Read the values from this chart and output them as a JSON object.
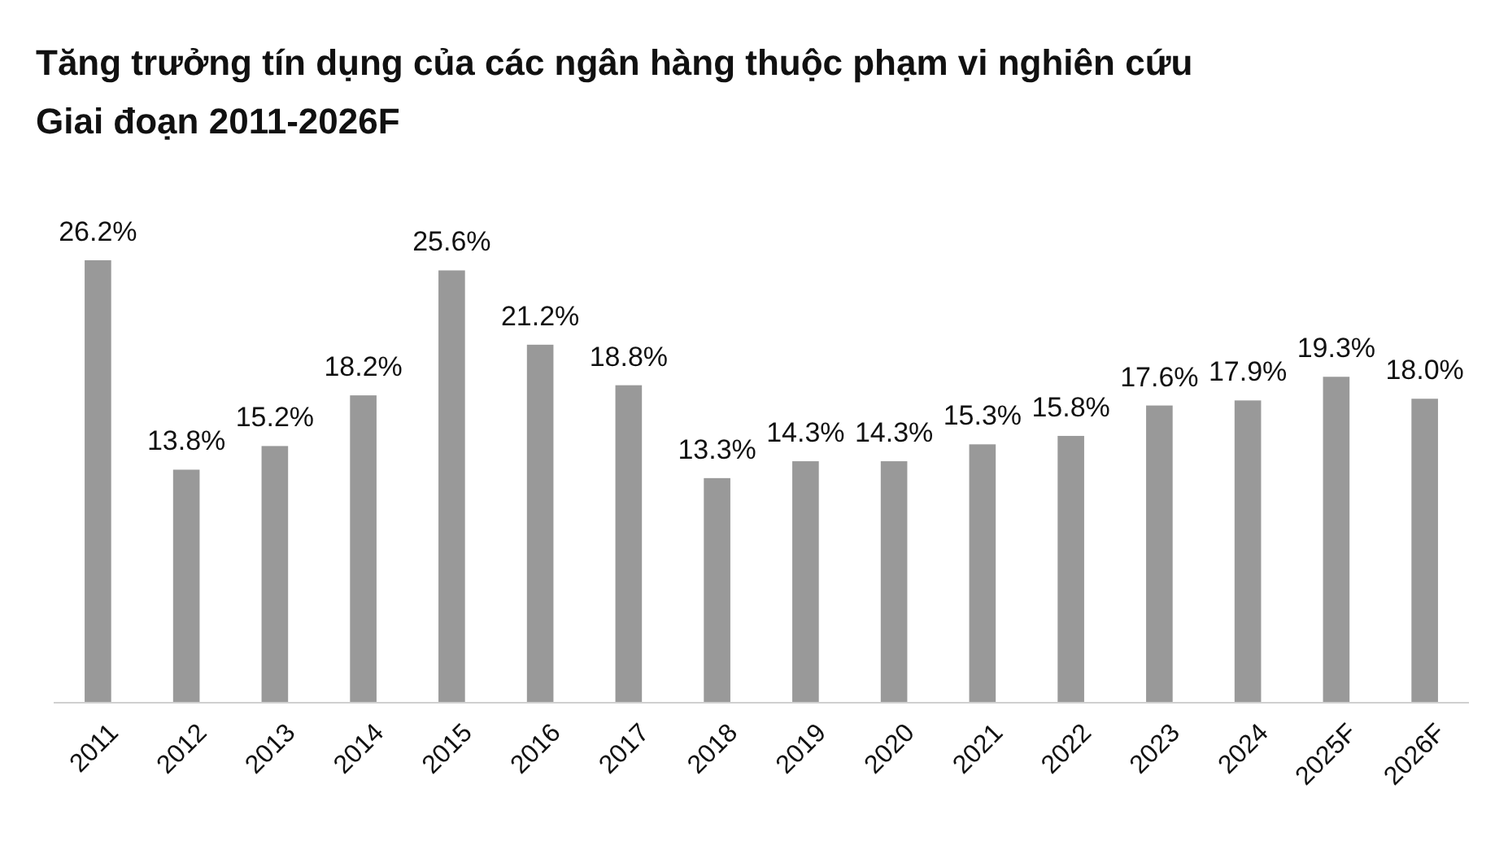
{
  "chart_data": {
    "type": "bar",
    "title": "Tăng trưởng tín dụng của các ngân hàng thuộc phạm vi nghiên cứu",
    "subtitle": "Giai đoạn 2011-2026F",
    "categories": [
      "2011",
      "2012",
      "2013",
      "2014",
      "2015",
      "2016",
      "2017",
      "2018",
      "2019",
      "2020",
      "2021",
      "2022",
      "2023",
      "2024",
      "2025F",
      "2026F"
    ],
    "values": [
      26.2,
      13.8,
      15.2,
      18.2,
      25.6,
      21.2,
      18.8,
      13.3,
      14.3,
      14.3,
      15.3,
      15.8,
      17.6,
      17.9,
      19.3,
      18.0
    ],
    "value_labels": [
      "26.2%",
      "13.8%",
      "15.2%",
      "18.2%",
      "25.6%",
      "21.2%",
      "18.8%",
      "13.3%",
      "14.3%",
      "14.3%",
      "15.3%",
      "15.8%",
      "17.6%",
      "17.9%",
      "19.3%",
      "18.0%"
    ],
    "color": "#999999"
  }
}
